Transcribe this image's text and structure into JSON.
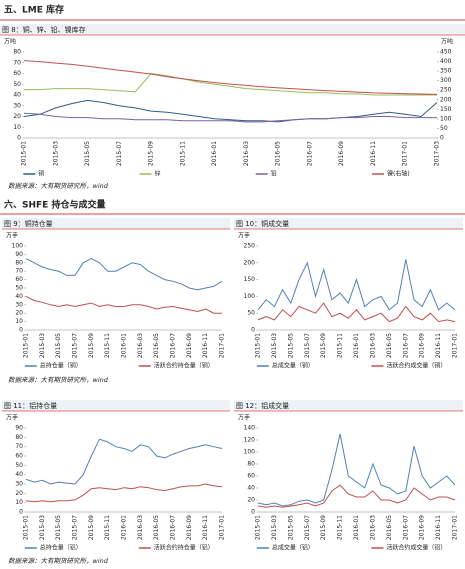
{
  "sections": [
    "五、LME 库存",
    "六、SHFE 持仓与成交量"
  ],
  "sources": [
    "数据来源：大有期货研究所，wind",
    "数据来源：大有期货研究所，wind",
    "数据来源：大有期货研究所，wind"
  ],
  "chart_data": [
    {
      "type": "line",
      "title": "图 8：铜、锌、铅、镍库存",
      "y_label": "万吨",
      "y2_label": "万吨",
      "categories": [
        "2015-01",
        null,
        "2015-03",
        null,
        "2015-05",
        null,
        "2015-07",
        null,
        "2015-09",
        null,
        "2015-11",
        null,
        "2016-01",
        null,
        "2016-03",
        null,
        "2016-05",
        null,
        "2016-07",
        null,
        "2016-09",
        null,
        "2016-11",
        null,
        "2017-01",
        null,
        "2017-03"
      ],
      "series": [
        {
          "name": "铜",
          "color": "#2e5c8a",
          "values": [
            20,
            22,
            28,
            32,
            35,
            33,
            30,
            28,
            25,
            24,
            22,
            20,
            18,
            17,
            16,
            16,
            15,
            17,
            18,
            18,
            19,
            20,
            22,
            24,
            22,
            20,
            33
          ]
        },
        {
          "name": "锌",
          "color": "#9bbb59",
          "values": [
            45,
            45,
            46,
            46,
            46,
            45,
            44,
            43,
            60,
            58,
            55,
            52,
            50,
            48,
            46,
            45,
            44,
            43,
            42,
            42,
            41,
            41,
            40,
            40,
            40,
            40,
            40
          ]
        },
        {
          "name": "铅",
          "color": "#7d5fa0",
          "values": [
            23,
            22,
            20,
            19,
            19,
            18,
            18,
            17,
            17,
            17,
            16,
            16,
            16,
            16,
            15,
            15,
            16,
            17,
            18,
            18,
            19,
            19,
            20,
            20,
            19,
            19,
            19
          ]
        },
        {
          "name": "镍(右轴)",
          "color": "#c0504d",
          "axis": "y2",
          "values": [
            405,
            400,
            392,
            385,
            375,
            365,
            355,
            345,
            335,
            320,
            310,
            300,
            290,
            282,
            275,
            268,
            262,
            258,
            252,
            248,
            244,
            240,
            236,
            234,
            232,
            230,
            228
          ]
        }
      ],
      "ylim": [
        0,
        80
      ],
      "yticks": [
        0,
        10,
        20,
        30,
        40,
        50,
        60,
        70,
        80
      ],
      "y2lim": [
        0,
        450
      ],
      "y2ticks": [
        0,
        50,
        100,
        150,
        200,
        250,
        300,
        350,
        400,
        450
      ]
    },
    {
      "type": "line",
      "title": "图 9：铜持仓量",
      "y_label": "万手",
      "categories": [
        "2015-01",
        null,
        "2015-03",
        null,
        "2015-05",
        null,
        "2015-07",
        null,
        "2015-09",
        null,
        "2015-11",
        null,
        "2016-01",
        null,
        "2016-03",
        null,
        "2016-05",
        null,
        "2016-07",
        null,
        "2016-09",
        null,
        "2016-11",
        null,
        "2017-01"
      ],
      "series": [
        {
          "name": "总持仓量（铜）",
          "color": "#4f81bd",
          "values": [
            85,
            80,
            75,
            72,
            70,
            65,
            65,
            80,
            85,
            80,
            70,
            70,
            75,
            80,
            78,
            70,
            65,
            60,
            58,
            55,
            50,
            48,
            50,
            52,
            58
          ]
        },
        {
          "name": "活跃合约持仓量（铜）",
          "color": "#c0504d",
          "values": [
            40,
            35,
            33,
            30,
            28,
            30,
            28,
            30,
            32,
            28,
            30,
            28,
            28,
            30,
            30,
            28,
            25,
            27,
            28,
            26,
            24,
            22,
            25,
            20,
            20
          ]
        }
      ],
      "ylim": [
        0,
        100
      ],
      "yticks": [
        0,
        10,
        20,
        30,
        40,
        50,
        60,
        70,
        80,
        90,
        100
      ]
    },
    {
      "type": "line",
      "title": "图 10：铜成交量",
      "y_label": "万手",
      "categories": [
        "2015-01",
        null,
        "2015-03",
        null,
        "2015-05",
        null,
        "2015-07",
        null,
        "2015-09",
        null,
        "2015-11",
        null,
        "2016-01",
        null,
        "2016-03",
        null,
        "2016-05",
        null,
        "2016-07",
        null,
        "2016-09",
        null,
        "2016-11",
        null,
        "2017-01"
      ],
      "series": [
        {
          "name": "总成交量（铜）",
          "color": "#4f81bd",
          "values": [
            60,
            90,
            70,
            120,
            80,
            150,
            200,
            100,
            180,
            90,
            110,
            80,
            150,
            70,
            90,
            100,
            60,
            80,
            210,
            90,
            70,
            120,
            60,
            80,
            60
          ]
        },
        {
          "name": "活跃合约成交量（铜）",
          "color": "#c0504d",
          "values": [
            30,
            40,
            30,
            60,
            40,
            70,
            60,
            50,
            80,
            40,
            50,
            35,
            60,
            30,
            40,
            50,
            25,
            35,
            70,
            40,
            30,
            50,
            25,
            30,
            25
          ]
        }
      ],
      "ylim": [
        0,
        250
      ],
      "yticks": [
        0,
        50,
        100,
        150,
        200,
        250
      ]
    },
    {
      "type": "line",
      "title": "图 11：铝持仓量",
      "y_label": "万手",
      "categories": [
        "2015-01",
        null,
        "2015-03",
        null,
        "2015-05",
        null,
        "2015-07",
        null,
        "2015-09",
        null,
        "2015-11",
        null,
        "2016-01",
        null,
        "2016-03",
        null,
        "2016-05",
        null,
        "2016-07",
        null,
        "2016-09",
        null,
        "2016-11",
        null,
        "2017-01"
      ],
      "series": [
        {
          "name": "总持仓量（铝）",
          "color": "#4f81bd",
          "values": [
            35,
            32,
            34,
            30,
            32,
            31,
            30,
            40,
            60,
            78,
            75,
            70,
            68,
            65,
            72,
            70,
            60,
            58,
            62,
            65,
            68,
            70,
            72,
            70,
            68
          ]
        },
        {
          "name": "活跃合约持仓量（铝）",
          "color": "#c0504d",
          "values": [
            12,
            11,
            12,
            11,
            12,
            12,
            13,
            18,
            25,
            26,
            25,
            24,
            26,
            25,
            27,
            26,
            24,
            23,
            25,
            27,
            28,
            28,
            30,
            28,
            27
          ]
        }
      ],
      "ylim": [
        0,
        90
      ],
      "yticks": [
        0,
        10,
        20,
        30,
        40,
        50,
        60,
        70,
        80,
        90
      ]
    },
    {
      "type": "line",
      "title": "图 12：铝成交量",
      "y_label": "万手",
      "categories": [
        "2015-01",
        null,
        "2015-03",
        null,
        "2015-05",
        null,
        "2015-07",
        null,
        "2015-09",
        null,
        "2015-11",
        null,
        "2016-01",
        null,
        "2016-03",
        null,
        "2016-05",
        null,
        "2016-07",
        null,
        "2016-09",
        null,
        "2016-11",
        null,
        "2017-01"
      ],
      "series": [
        {
          "name": "总成交量（铝）",
          "color": "#4f81bd",
          "values": [
            15,
            12,
            15,
            10,
            12,
            18,
            20,
            15,
            20,
            70,
            130,
            60,
            50,
            40,
            80,
            45,
            40,
            30,
            35,
            110,
            60,
            40,
            50,
            60,
            45
          ]
        },
        {
          "name": "活跃合约成交量（铝）",
          "color": "#c0504d",
          "values": [
            10,
            8,
            10,
            8,
            10,
            12,
            15,
            10,
            15,
            35,
            45,
            30,
            25,
            25,
            35,
            20,
            20,
            15,
            20,
            40,
            30,
            20,
            25,
            25,
            20
          ]
        }
      ],
      "ylim": [
        0,
        140
      ],
      "yticks": [
        0,
        20,
        40,
        60,
        80,
        100,
        120,
        140
      ]
    }
  ]
}
